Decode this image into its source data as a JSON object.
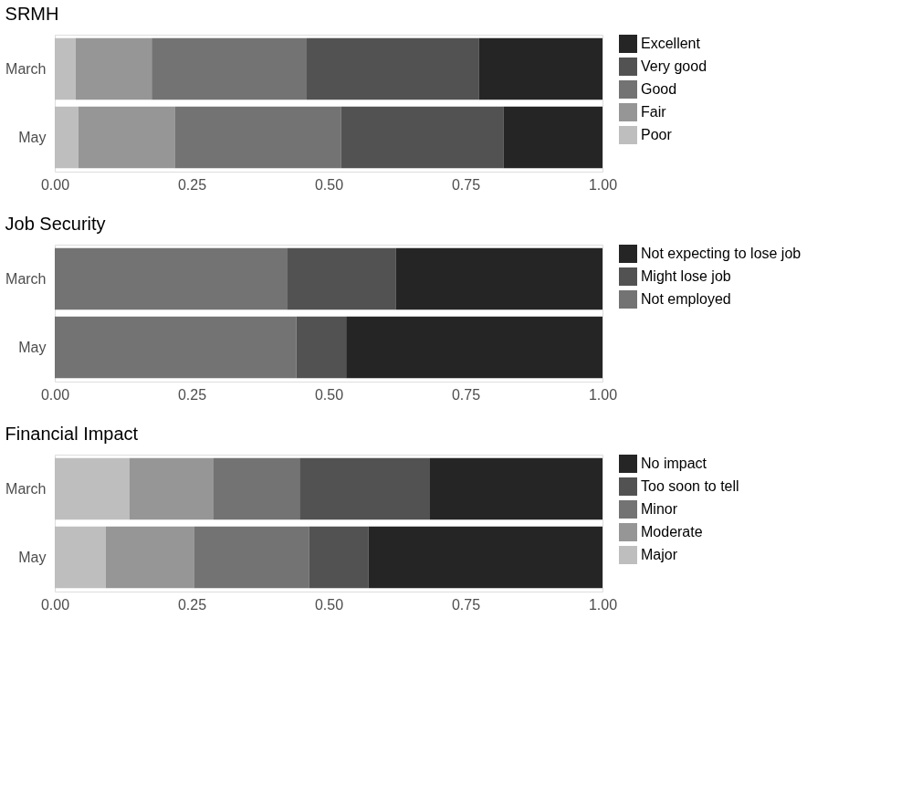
{
  "chart_data": [
    {
      "type": "bar",
      "title": "SRMH",
      "orientation": "horizontal",
      "stacked": true,
      "categories": [
        "March",
        "May"
      ],
      "series": [
        {
          "name": "Poor",
          "color": "#bebebe",
          "values": [
            0.038,
            0.043
          ]
        },
        {
          "name": "Fair",
          "color": "#969696",
          "values": [
            0.139,
            0.176
          ]
        },
        {
          "name": "Good",
          "color": "#737373",
          "values": [
            0.283,
            0.304
          ]
        },
        {
          "name": "Very good",
          "color": "#525252",
          "values": [
            0.314,
            0.296
          ]
        },
        {
          "name": "Excellent",
          "color": "#252525",
          "values": [
            0.226,
            0.181
          ]
        }
      ],
      "xlim": [
        0,
        1
      ],
      "xticks": [
        {
          "value": 0,
          "label": "0.00"
        },
        {
          "value": 0.25,
          "label": "0.25"
        },
        {
          "value": 0.5,
          "label": "0.50"
        },
        {
          "value": 0.75,
          "label": "0.75"
        },
        {
          "value": 1,
          "label": "1.00"
        }
      ],
      "legend": "right",
      "grid": false
    },
    {
      "type": "bar",
      "title": "Job Security",
      "orientation": "horizontal",
      "stacked": true,
      "categories": [
        "March",
        "May"
      ],
      "series": [
        {
          "name": "Not employed",
          "color": "#737373",
          "values": [
            0.425,
            0.441
          ]
        },
        {
          "name": "Might lose job",
          "color": "#525252",
          "values": [
            0.198,
            0.091
          ]
        },
        {
          "name": "Not expecting to lose job",
          "color": "#252525",
          "values": [
            0.377,
            0.468
          ]
        }
      ],
      "xlim": [
        0,
        1
      ],
      "xticks": [
        {
          "value": 0,
          "label": "0.00"
        },
        {
          "value": 0.25,
          "label": "0.25"
        },
        {
          "value": 0.5,
          "label": "0.50"
        },
        {
          "value": 0.75,
          "label": "0.75"
        },
        {
          "value": 1,
          "label": "1.00"
        }
      ],
      "legend": "right",
      "grid": false
    },
    {
      "type": "bar",
      "title": "Financial Impact",
      "orientation": "horizontal",
      "stacked": true,
      "categories": [
        "March",
        "May"
      ],
      "series": [
        {
          "name": "Major",
          "color": "#bebebe",
          "values": [
            0.136,
            0.093
          ]
        },
        {
          "name": "Moderate",
          "color": "#969696",
          "values": [
            0.154,
            0.161
          ]
        },
        {
          "name": "Minor",
          "color": "#737373",
          "values": [
            0.157,
            0.21
          ]
        },
        {
          "name": "Too soon to tell",
          "color": "#525252",
          "values": [
            0.238,
            0.109
          ]
        },
        {
          "name": "No impact",
          "color": "#252525",
          "values": [
            0.315,
            0.427
          ]
        }
      ],
      "xlim": [
        0,
        1
      ],
      "xticks": [
        {
          "value": 0,
          "label": "0.00"
        },
        {
          "value": 0.25,
          "label": "0.25"
        },
        {
          "value": 0.5,
          "label": "0.50"
        },
        {
          "value": 0.75,
          "label": "0.75"
        },
        {
          "value": 1,
          "label": "1.00"
        }
      ],
      "legend": "right",
      "grid": false
    }
  ]
}
